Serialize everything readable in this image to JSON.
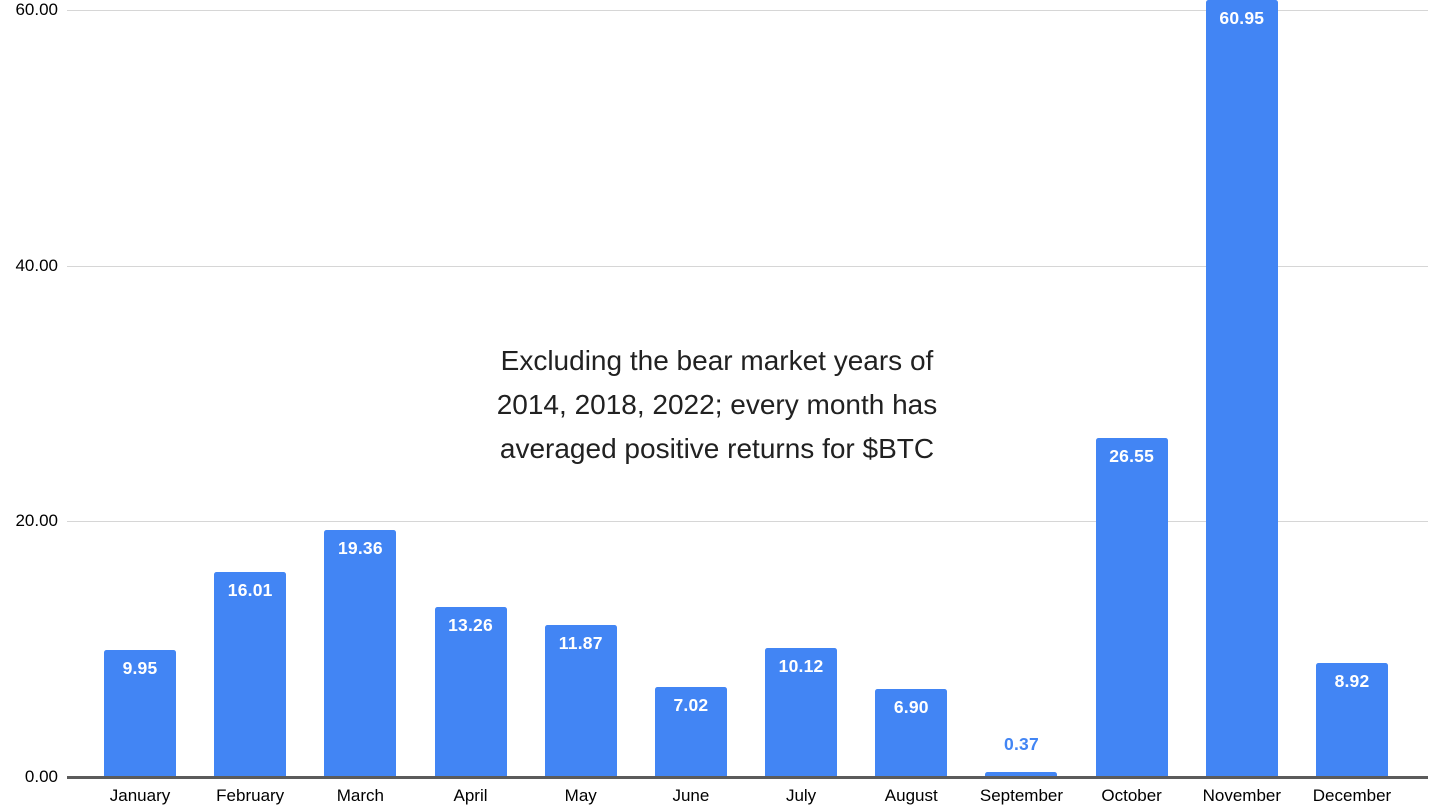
{
  "chart_data": {
    "type": "bar",
    "title": "",
    "xlabel": "",
    "ylabel": "",
    "categories": [
      "January",
      "February",
      "March",
      "April",
      "May",
      "June",
      "July",
      "August",
      "September",
      "October",
      "November",
      "December"
    ],
    "values": [
      9.95,
      16.01,
      19.36,
      13.26,
      11.87,
      7.02,
      10.12,
      6.9,
      0.37,
      26.55,
      60.95,
      8.92
    ],
    "value_labels": [
      "9.95",
      "16.01",
      "19.36",
      "13.26",
      "11.87",
      "7.02",
      "10.12",
      "6.90",
      "0.37",
      "26.55",
      "60.95",
      "8.92"
    ],
    "y_tick_labels": [
      "0.00",
      "20.00",
      "40.00",
      "60.00"
    ],
    "y_tick_values": [
      0,
      20,
      40,
      60
    ],
    "ylim": [
      0,
      60
    ],
    "grid": true,
    "legend": "none",
    "bar_color": "#4285f4",
    "inside_label_color": "#ffffff",
    "outside_label_color": "#4285f4",
    "annotation_lines": [
      "Excluding the bear market years of",
      "2014, 2018, 2022; every month has",
      "averaged positive returns for $BTC"
    ]
  }
}
